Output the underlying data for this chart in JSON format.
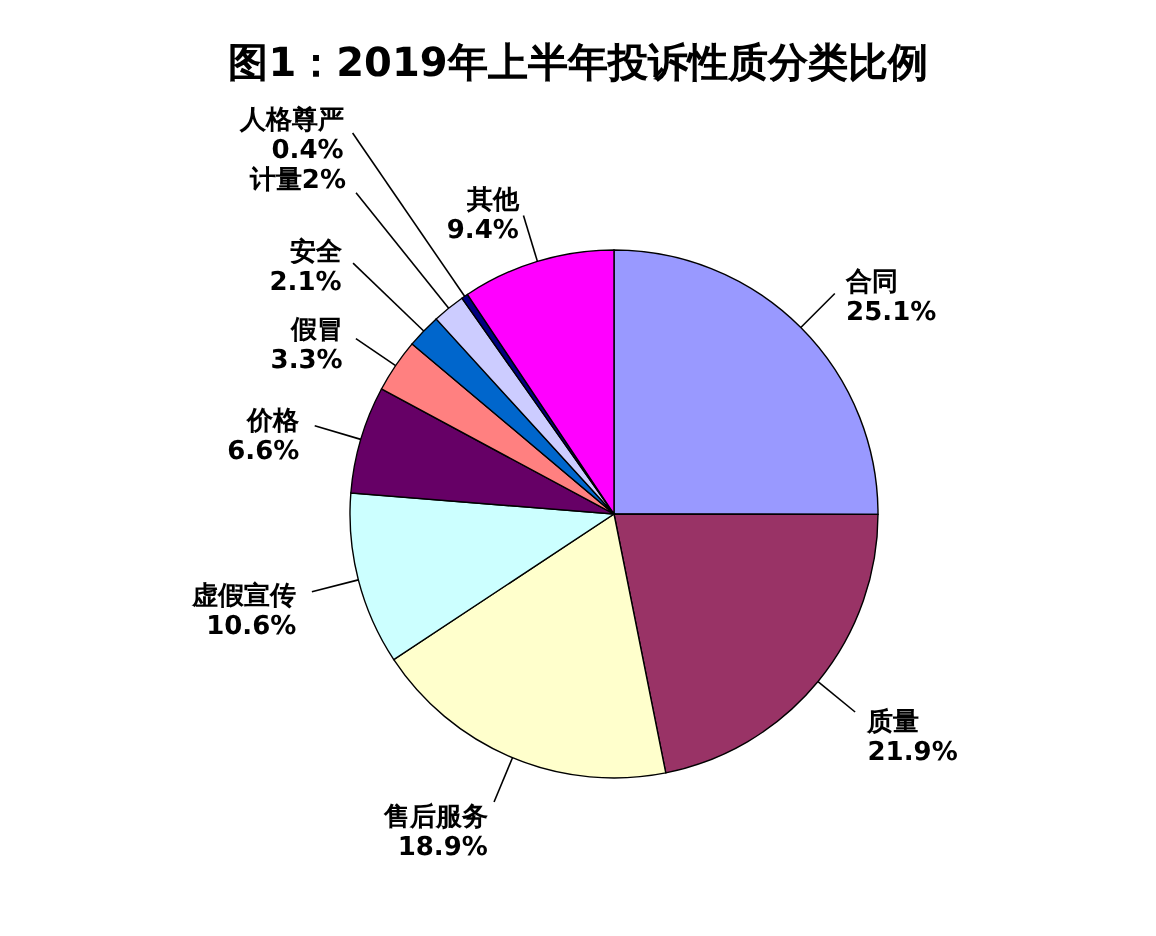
{
  "chart_data": {
    "type": "pie",
    "title": "图1：2019年上半年投诉性质分类比例",
    "categories": [
      "合同",
      "质量",
      "售后服务",
      "虚假宣传",
      "价格",
      "假冒",
      "安全",
      "计量2%",
      "人格尊严",
      "其他"
    ],
    "values": [
      25.1,
      21.9,
      18.9,
      10.6,
      6.6,
      3.3,
      2.1,
      2,
      0.4,
      9.4
    ],
    "value_labels": [
      "25.1%",
      "21.9%",
      "18.9%",
      "10.6%",
      "6.6%",
      "3.3%",
      "2.1%",
      null,
      "0.4%",
      "9.4%"
    ],
    "colors": [
      "#9999ff",
      "#993366",
      "#ffffcc",
      "#ccffff",
      "#660066",
      "#ff8080",
      "#0066cc",
      "#ccccff",
      "#000080",
      "#ff00ff"
    ],
    "legend": false
  }
}
